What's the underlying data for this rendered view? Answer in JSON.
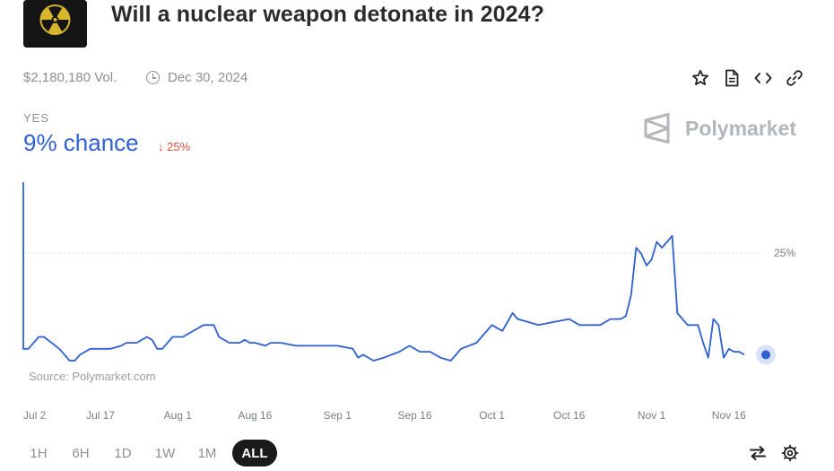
{
  "header": {
    "title": "Will a nuclear weapon detonate in 2024?",
    "icon": "radiation-icon"
  },
  "meta": {
    "volume": "$2,180,180 Vol.",
    "end_date": "Dec 30, 2024"
  },
  "actions": [
    {
      "name": "star-icon"
    },
    {
      "name": "document-icon"
    },
    {
      "name": "embed-code-icon"
    },
    {
      "name": "link-icon"
    }
  ],
  "outcome": {
    "label": "YES",
    "chance": "9% chance",
    "change": "↓ 25%"
  },
  "brand": {
    "name": "Polymarket"
  },
  "source": "Source: Polymarket.com",
  "ranges": [
    "1H",
    "6H",
    "1D",
    "1W",
    "1M",
    "ALL"
  ],
  "active_range": "ALL",
  "bottom_actions": [
    {
      "name": "swap-arrows-icon"
    },
    {
      "name": "settings-gear-icon"
    }
  ],
  "colors": {
    "line": "#2f5fd0",
    "chance": "#2f5fd0",
    "down": "#d84a3a"
  },
  "chart_data": {
    "type": "line",
    "title": "",
    "xlabel": "",
    "ylabel": "",
    "ylim": [
      0,
      40
    ],
    "y_ticks": [
      "25%"
    ],
    "y_tick_values": [
      25
    ],
    "x_ticks": [
      "Jul 2",
      "Jul 17",
      "Aug 1",
      "Aug 16",
      "Sep 1",
      "Sep 16",
      "Oct 1",
      "Oct 16",
      "Nov 1",
      "Nov 16"
    ],
    "grid": true,
    "series": [
      {
        "x": [
          "2024-07-02",
          "2024-07-02",
          "2024-07-03",
          "2024-07-05",
          "2024-07-06",
          "2024-07-09",
          "2024-07-10",
          "2024-07-11",
          "2024-07-12",
          "2024-07-13",
          "2024-07-14",
          "2024-07-15",
          "2024-07-16",
          "2024-07-17",
          "2024-07-19",
          "2024-07-21",
          "2024-07-22",
          "2024-07-24",
          "2024-07-26",
          "2024-07-27",
          "2024-07-28",
          "2024-07-29",
          "2024-07-30",
          "2024-07-31",
          "2024-08-02",
          "2024-08-04",
          "2024-08-06",
          "2024-08-08",
          "2024-08-09",
          "2024-08-11",
          "2024-08-13",
          "2024-08-14",
          "2024-08-15",
          "2024-08-16",
          "2024-08-18",
          "2024-08-19",
          "2024-08-21",
          "2024-08-24",
          "2024-08-27",
          "2024-08-29",
          "2024-09-01",
          "2024-09-04",
          "2024-09-05",
          "2024-09-06",
          "2024-09-08",
          "2024-09-10",
          "2024-09-13",
          "2024-09-15",
          "2024-09-17",
          "2024-09-19",
          "2024-09-21",
          "2024-09-23",
          "2024-09-25",
          "2024-09-28",
          "2024-09-29",
          "2024-09-30",
          "2024-10-01",
          "2024-10-03",
          "2024-10-05",
          "2024-10-06",
          "2024-10-08",
          "2024-10-10",
          "2024-10-13",
          "2024-10-16",
          "2024-10-18",
          "2024-10-20",
          "2024-10-22",
          "2024-10-24",
          "2024-10-26",
          "2024-10-27",
          "2024-10-28",
          "2024-10-29",
          "2024-10-30",
          "2024-10-31",
          "2024-11-01",
          "2024-11-02",
          "2024-11-03",
          "2024-11-04",
          "2024-11-05",
          "2024-11-06",
          "2024-11-07",
          "2024-11-08",
          "2024-11-10",
          "2024-11-11",
          "2024-11-12",
          "2024-11-13",
          "2024-11-14",
          "2024-11-15",
          "2024-11-16",
          "2024-11-17",
          "2024-11-18",
          "2024-11-19"
        ],
        "y": [
          38,
          10,
          10,
          12,
          12,
          10,
          9,
          8,
          8,
          9,
          9.5,
          10,
          10,
          10,
          10,
          10.5,
          11,
          11,
          12,
          11.5,
          10,
          10,
          11,
          12,
          12,
          13,
          14,
          14,
          12,
          11,
          11,
          11.5,
          11,
          11,
          10.5,
          11,
          11,
          10.5,
          10.5,
          10.5,
          10.5,
          10,
          8.5,
          9,
          8,
          8.5,
          9.5,
          10.5,
          9.5,
          9.5,
          8.5,
          8,
          10,
          11,
          12,
          13,
          14,
          13,
          16,
          15,
          14.5,
          14,
          14.5,
          15,
          14,
          14,
          14,
          15,
          15,
          15.5,
          19,
          27,
          26,
          24,
          25,
          28,
          27,
          28,
          29,
          16,
          15,
          14,
          14,
          11,
          8.5,
          15,
          14,
          8.5,
          10,
          9.5,
          9.5,
          9
        ]
      }
    ]
  }
}
